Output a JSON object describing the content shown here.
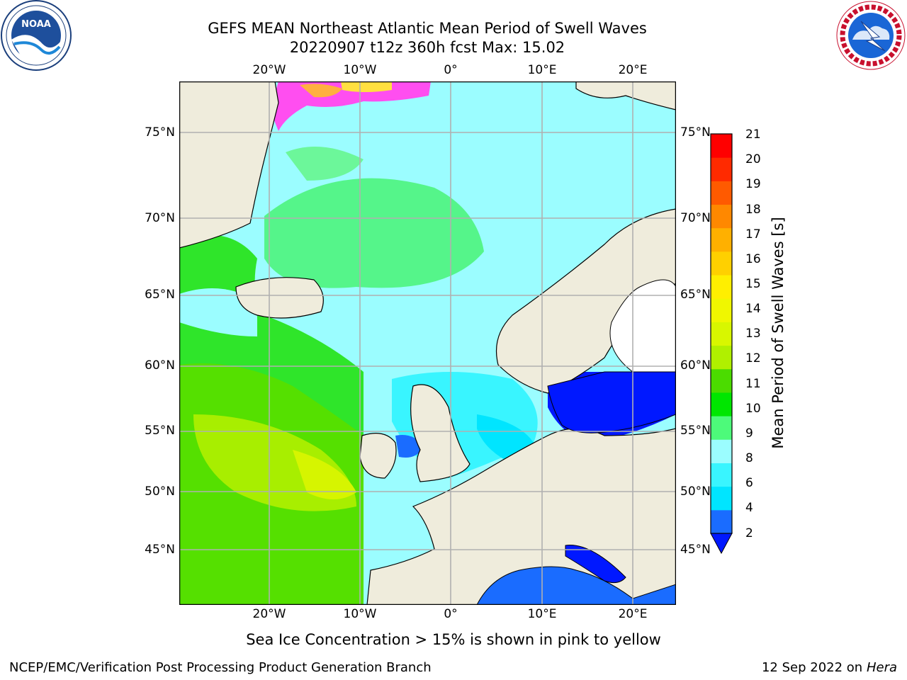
{
  "title": {
    "line1": "GEFS MEAN Northeast Atlantic Mean Period of Swell Waves",
    "line2": "20220907 t12z 360h fcst   Max: 15.02"
  },
  "logos": {
    "left": "noaa-logo",
    "right": "national-weather-service-logo"
  },
  "map": {
    "lon_labels": [
      "20°W",
      "10°W",
      "0°",
      "10°E",
      "20°E"
    ],
    "lat_labels": [
      "75°N",
      "70°N",
      "65°N",
      "60°N",
      "55°N",
      "50°N",
      "45°N"
    ],
    "lon_range": [
      -30,
      25
    ],
    "lat_range": [
      41,
      78
    ],
    "land_color": "#efecdc",
    "grid": true
  },
  "colorbar": {
    "title": "Mean Period of Swell Waves [s]",
    "ticks": [
      "21",
      "20",
      "19",
      "18",
      "17",
      "16",
      "15",
      "14",
      "13",
      "12",
      "11",
      "10",
      "9",
      "8",
      "6",
      "4",
      "2"
    ],
    "colors_low_to_high": [
      "#1a6cff",
      "#00e5ff",
      "#39f5ff",
      "#9bfdff",
      "#4dfa7a",
      "#00e600",
      "#4bdc00",
      "#b0f000",
      "#d8f700",
      "#f0f700",
      "#ffef00",
      "#ffd000",
      "#ffb000",
      "#ff8800",
      "#ff5a00",
      "#ff2a00",
      "#ff0000"
    ],
    "under_color": "#0018ff"
  },
  "note": "Sea Ice Concentration > 15% is shown in pink to yellow",
  "footer": {
    "left": "NCEP/EMC/Verification Post Processing Product Generation Branch",
    "right_date": "12 Sep 2022 on",
    "right_host": "Hera"
  }
}
